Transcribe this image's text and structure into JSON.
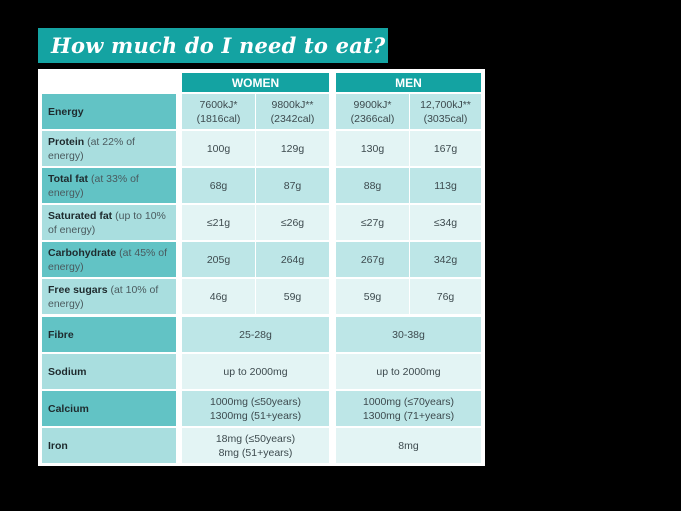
{
  "title": "How much do I need to eat?",
  "columns": {
    "groups": [
      {
        "label": "WOMEN"
      },
      {
        "label": "MEN"
      }
    ]
  },
  "rows": [
    {
      "name": "Energy",
      "note": "",
      "values": [
        "7600kJ*\n(1816cal)",
        "9800kJ**\n(2342cal)",
        "9900kJ*\n(2366cal)",
        "12,700kJ**\n(3035cal)"
      ],
      "merged": false
    },
    {
      "name": "Protein",
      "note": " (at 22% of energy)",
      "values": [
        "100g",
        "129g",
        "130g",
        "167g"
      ],
      "merged": false
    },
    {
      "name": "Total fat",
      "note": " (at 33% of energy)",
      "values": [
        "68g",
        "87g",
        "88g",
        "113g"
      ],
      "merged": false
    },
    {
      "name": "Saturated fat",
      "note": " (up to 10% of energy)",
      "values": [
        "≤21g",
        "≤26g",
        "≤27g",
        "≤34g"
      ],
      "merged": false
    },
    {
      "name": "Carbohydrate",
      "note": " (at 45% of energy)",
      "values": [
        "205g",
        "264g",
        "267g",
        "342g"
      ],
      "merged": false
    },
    {
      "name": "Free sugars",
      "note": " (at 10% of energy)",
      "values": [
        "46g",
        "59g",
        "59g",
        "76g"
      ],
      "merged": false
    },
    {
      "name": "Fibre",
      "note": "",
      "values": [
        "25-28g",
        "30-38g"
      ],
      "merged": true
    },
    {
      "name": "Sodium",
      "note": "",
      "values": [
        "up to 2000mg",
        "up to 2000mg"
      ],
      "merged": true
    },
    {
      "name": "Calcium",
      "note": "",
      "values": [
        "1000mg (≤50years)\n1300mg (51+years)",
        "1000mg (≤70years)\n1300mg (71+years)"
      ],
      "merged": true
    },
    {
      "name": "Iron",
      "note": "",
      "values": [
        "18mg (≤50years)\n8mg (51+years)",
        "8mg"
      ],
      "merged": true
    }
  ],
  "colors": {
    "header": "#14a3a2",
    "label_dark": "#62c3c5",
    "label_light": "#a9dedf",
    "cell_dark": "#bde6e7",
    "cell_light": "#e3f4f4"
  }
}
